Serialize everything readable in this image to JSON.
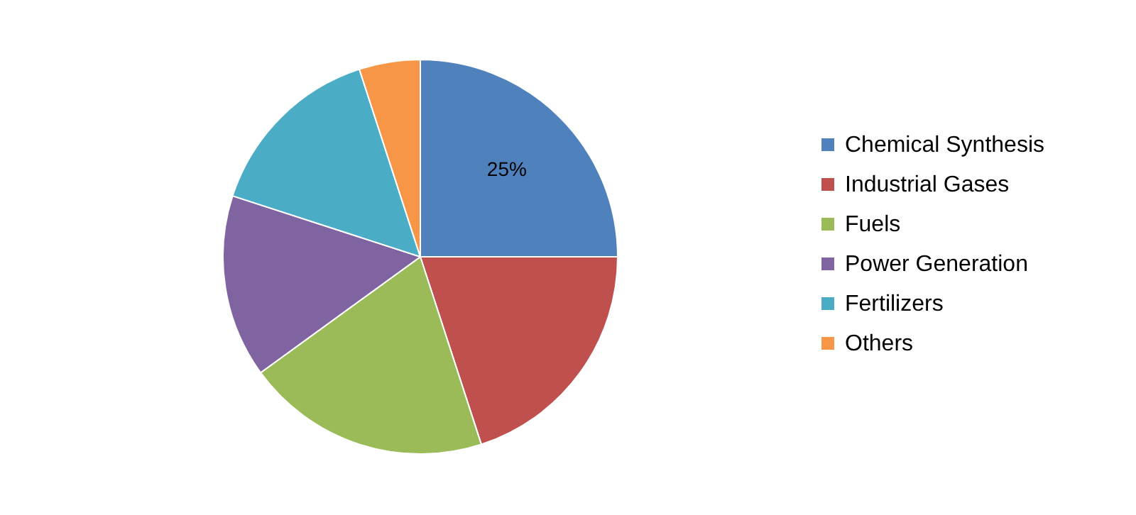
{
  "chart_data": {
    "type": "pie",
    "categories": [
      "Chemical Synthesis",
      "Industrial Gases",
      "Fuels",
      "Power Generation",
      "Fertilizers",
      "Others"
    ],
    "values": [
      25,
      20,
      20,
      15,
      15,
      5
    ],
    "colors": [
      "#4f81bd",
      "#c0504d",
      "#9bbb59",
      "#8064a2",
      "#4bacc6",
      "#f79646"
    ],
    "value_labels": [
      "25%",
      null,
      null,
      null,
      null,
      null
    ],
    "legend": "right"
  }
}
